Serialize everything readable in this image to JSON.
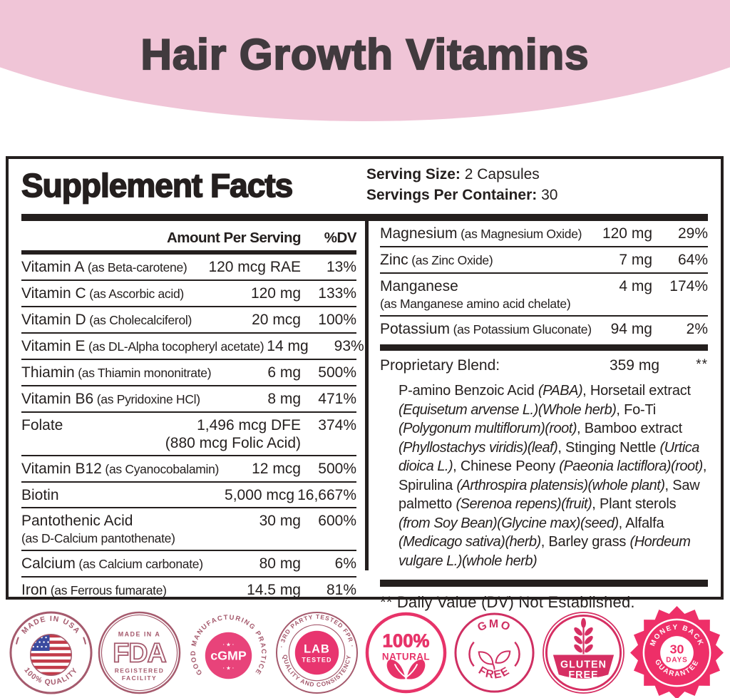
{
  "header": {
    "title": "Hair Growth Vitamins"
  },
  "panel": {
    "title": "Supplement Facts",
    "serving_size_label": "Serving Size:",
    "serving_size_value": "2 Capsules",
    "servings_per_container_label": "Servings Per Container:",
    "servings_per_container_value": "30",
    "amount_header": "Amount Per Serving",
    "dv_header": "%DV",
    "left_rows": [
      {
        "name": "Vitamin A",
        "qualifier": "(as Beta-carotene)",
        "amount": "120 mcg RAE",
        "dv": "13%"
      },
      {
        "name": "Vitamin C",
        "qualifier": "(as Ascorbic acid)",
        "amount": "120 mg",
        "dv": "133%"
      },
      {
        "name": "Vitamin D",
        "qualifier": "(as Cholecalciferol)",
        "amount": "20 mcg",
        "dv": "100%"
      },
      {
        "name": "Vitamin E",
        "qualifier": "(as DL-Alpha tocopheryl acetate)",
        "amount": "14 mg",
        "dv": "93%"
      },
      {
        "name": "Thiamin",
        "qualifier": "(as Thiamin mononitrate)",
        "amount": "6 mg",
        "dv": "500%"
      },
      {
        "name": "Vitamin B6",
        "qualifier": "(as Pyridoxine HCl)",
        "amount": "8 mg",
        "dv": "471%"
      },
      {
        "name": "Folate",
        "amount": "1,496 mcg DFE",
        "amount2": "(880 mcg Folic Acid)",
        "dv": "374%"
      },
      {
        "name": "Vitamin B12",
        "qualifier": "(as Cyanocobalamin)",
        "amount": "12 mcg",
        "dv": "500%"
      },
      {
        "name": "Biotin",
        "amount": "5,000 mcg",
        "dv": "16,667%"
      },
      {
        "name": "Pantothenic Acid",
        "qualifier": "(as D-Calcium pantothenate)",
        "qualifier_block": true,
        "amount": "30 mg",
        "dv": "600%"
      },
      {
        "name": "Calcium",
        "qualifier": "(as Calcium carbonate)",
        "amount": "80 mg",
        "dv": "6%"
      },
      {
        "name": "Iron",
        "qualifier": "(as Ferrous fumarate)",
        "amount": "14.5 mg",
        "dv": "81%"
      }
    ],
    "right_rows": [
      {
        "name": "Magnesium",
        "qualifier": "(as Magnesium Oxide)",
        "amount": "120 mg",
        "dv": "29%"
      },
      {
        "name": "Zinc",
        "qualifier": "(as Zinc Oxide)",
        "amount": "7 mg",
        "dv": "64%"
      },
      {
        "name": "Manganese",
        "qualifier": "(as Manganese amino acid chelate)",
        "qualifier_block": true,
        "amount": "4 mg",
        "dv": "174%"
      },
      {
        "name": "Potassium",
        "qualifier": "(as Potassium Gluconate)",
        "amount": "94 mg",
        "dv": "2%"
      }
    ],
    "proprietary": {
      "label": "Proprietary Blend:",
      "amount": "359 mg",
      "dv": "**"
    },
    "blend_segments": [
      {
        "t": "P-amino Benzoic Acid ",
        "i": 0
      },
      {
        "t": "(PABA)",
        "i": 1
      },
      {
        "t": ", Horsetail extract ",
        "i": 0
      },
      {
        "t": "(Equisetum arvense L.)(Whole herb)",
        "i": 1
      },
      {
        "t": ", Fo-Ti ",
        "i": 0
      },
      {
        "t": "(Polygonum multiflorum)(root)",
        "i": 1
      },
      {
        "t": ", Bamboo extract ",
        "i": 0
      },
      {
        "t": "(Phyllostachys viridis)(leaf)",
        "i": 1
      },
      {
        "t": ", Stinging Nettle ",
        "i": 0
      },
      {
        "t": "(Urtica dioica L.)",
        "i": 1
      },
      {
        "t": ", Chinese Peony ",
        "i": 0
      },
      {
        "t": "(Paeonia lactiflora)(root)",
        "i": 1
      },
      {
        "t": ", Spirulina ",
        "i": 0
      },
      {
        "t": "(Arthrospira platensis)(whole plant)",
        "i": 1
      },
      {
        "t": ", Saw palmetto ",
        "i": 0
      },
      {
        "t": "(Serenoa repens)(fruit)",
        "i": 1
      },
      {
        "t": ", Plant sterols ",
        "i": 0
      },
      {
        "t": "(from Soy Bean)(Glycine max)(seed)",
        "i": 1
      },
      {
        "t": ", Alfalfa ",
        "i": 0
      },
      {
        "t": "(Medicago sativa)(herb)",
        "i": 1
      },
      {
        "t": ", Barley grass ",
        "i": 0
      },
      {
        "t": "(Hordeum vulgare L.)(whole herb)",
        "i": 1
      }
    ],
    "footnote": "** Daily Value (DV) Not Established."
  },
  "badges": [
    {
      "id": "made-in-usa",
      "arc_top": "MADE IN USA",
      "arc_bottom": "100% QUALITY"
    },
    {
      "id": "fda",
      "line1": "MADE IN A",
      "big": "FDA",
      "line2": "REGISTERED",
      "line3": "FACILITY"
    },
    {
      "id": "cgmp",
      "arc": "GOOD MANUFACTURING PRACTICE",
      "center": "cGMP",
      "stars": "· ★ ·"
    },
    {
      "id": "lab-tested",
      "arc_top": "· 3RD PARTY TESTED FPR ·",
      "arc_bottom": "QUALITY AND CONSISTENCY",
      "center1": "LAB",
      "center2": "TESTED"
    },
    {
      "id": "natural",
      "line1": "100%",
      "line2": "NATURAL"
    },
    {
      "id": "gmo-free",
      "arc_top": "GMO",
      "arc_bottom": "FREE"
    },
    {
      "id": "gluten-free",
      "line1": "GLUTEN",
      "line2": "FREE"
    },
    {
      "id": "money-back",
      "arc_top": "MONEY BACK",
      "center1": "30",
      "center2": "DAYS",
      "arc_bottom": "GUARANTEE"
    }
  ],
  "colors": {
    "hero_pink": "#f0c5d7",
    "ink": "#241f1e",
    "badge_muted_rose": "#a55a6d",
    "badge_bright_pink": "#e73369",
    "money_pink": "#ee2f68",
    "flag_red": "#c23b49",
    "flag_blue": "#3a4a9f"
  }
}
